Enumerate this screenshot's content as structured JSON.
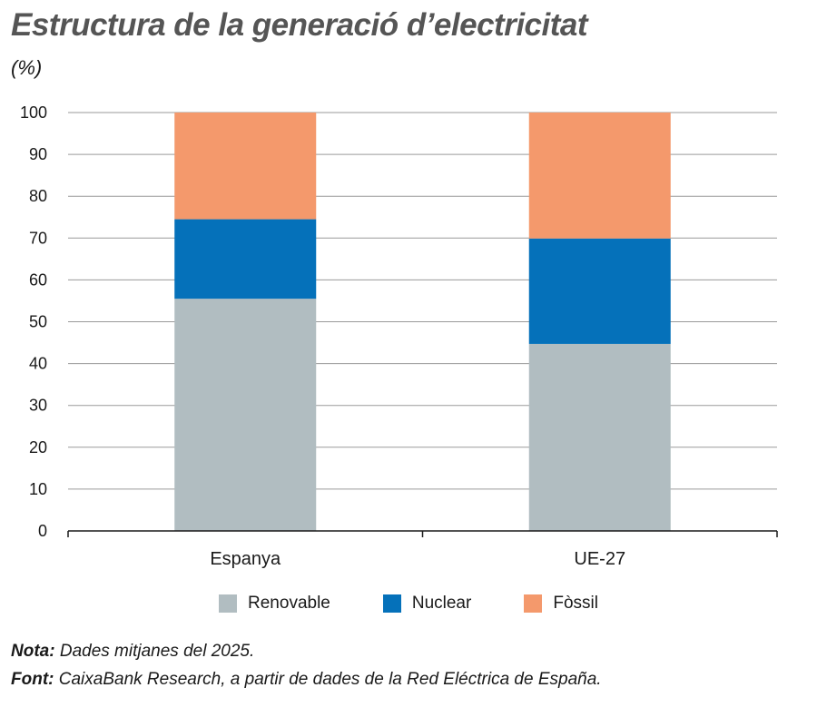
{
  "title": "Estructura de la generació d’electricitat",
  "unit": "(%)",
  "chart_data": {
    "type": "bar",
    "stacked": true,
    "categories": [
      "Espanya",
      "UE-27"
    ],
    "series": [
      {
        "name": "Renovable",
        "color": "#b1bdc1",
        "values": [
          55.5,
          44.7
        ]
      },
      {
        "name": "Nuclear",
        "color": "#0571ba",
        "values": [
          19.0,
          25.2
        ]
      },
      {
        "name": "Fòssil",
        "color": "#f4996c",
        "values": [
          25.5,
          30.1
        ]
      }
    ],
    "yticks": [
      "0",
      "10",
      "20",
      "30",
      "40",
      "50",
      "60",
      "70",
      "80",
      "90",
      "100"
    ],
    "ylim": [
      0,
      100
    ],
    "grid": true,
    "legend_position": "bottom"
  },
  "notes": {
    "nota_label": "Nota:",
    "nota_text": " Dades mitjanes del 2025.",
    "font_label": "Font:",
    "font_text": " CaixaBank Research, a partir de dades de la Red Eléctrica de España."
  }
}
